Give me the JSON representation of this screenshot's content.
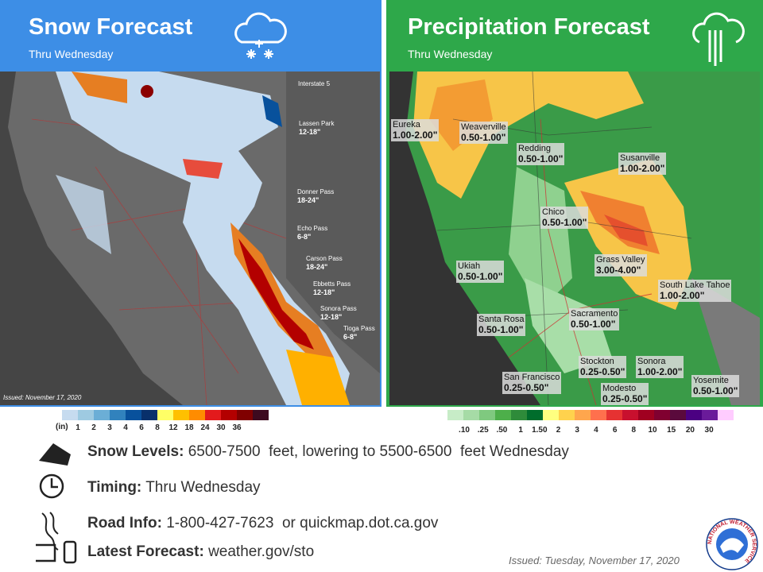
{
  "snow_panel": {
    "title": "Snow Forecast",
    "subtitle": "Thru Wednesday",
    "issued": "Issued: November 17, 2020",
    "labels": [
      {
        "name": "Interstate 5"
      },
      {
        "name": "Lassen Park",
        "amount": "12-18\""
      },
      {
        "name": "Donner Pass",
        "amount": "18-24\""
      },
      {
        "name": "Echo Pass",
        "amount": "6-8\""
      },
      {
        "name": "Carson Pass",
        "amount": "18-24\""
      },
      {
        "name": "Ebbetts Pass",
        "amount": "12-18\""
      },
      {
        "name": "Sonora Pass",
        "amount": "12-18\""
      },
      {
        "name": "Tioga Pass",
        "amount": "6-8\""
      }
    ],
    "legend": {
      "unit": "(in)",
      "labels": [
        "1",
        "2",
        "3",
        "4",
        "6",
        "8",
        "12",
        "18",
        "24",
        "30",
        "36"
      ]
    }
  },
  "precip_panel": {
    "title": "Precipitation Forecast",
    "subtitle": "Thru Wednesday",
    "labels": [
      {
        "name": "Eureka",
        "amount": "1.00-2.00\""
      },
      {
        "name": "Weaverville",
        "amount": "0.50-1.00\""
      },
      {
        "name": "Redding",
        "amount": "0.50-1.00\""
      },
      {
        "name": "Susanville",
        "amount": "1.00-2.00\""
      },
      {
        "name": "Chico",
        "amount": "0.50-1.00\""
      },
      {
        "name": "Ukiah",
        "amount": "0.50-1.00\""
      },
      {
        "name": "Grass Valley",
        "amount": "3.00-4.00\""
      },
      {
        "name": "South Lake Tahoe",
        "amount": "1.00-2.00\""
      },
      {
        "name": "Sacramento",
        "amount": "0.50-1.00\""
      },
      {
        "name": "Santa Rosa",
        "amount": "0.50-1.00\""
      },
      {
        "name": "Stockton",
        "amount": "0.25-0.50\""
      },
      {
        "name": "Sonora",
        "amount": "1.00-2.00\""
      },
      {
        "name": "San Francisco",
        "amount": "0.25-0.50\""
      },
      {
        "name": "Modesto",
        "amount": "0.25-0.50\""
      },
      {
        "name": "Yosemite",
        "amount": "0.50-1.00\""
      }
    ],
    "legend": {
      "labels": [
        ".10",
        ".25",
        ".50",
        "1",
        "1.50",
        "2",
        "3",
        "4",
        "6",
        "8",
        "10",
        "15",
        "20",
        "30"
      ]
    }
  },
  "info": [
    {
      "label": "Snow Levels:",
      "text": "6500-7500  feet, lowering to 5500-6500  feet Wednesday"
    },
    {
      "label": "Timing:",
      "text": "Thru Wednesday"
    },
    {
      "label": "Road Info:",
      "text": "1-800-427-7623  or quickmap.dot.ca.gov"
    },
    {
      "label": "Latest Forecast:",
      "text": "weather.gov/sto"
    }
  ],
  "footer": {
    "issued": "Issued: Tuesday, November 17, 2020",
    "logo": "NATIONAL WEATHER SERVICE"
  }
}
